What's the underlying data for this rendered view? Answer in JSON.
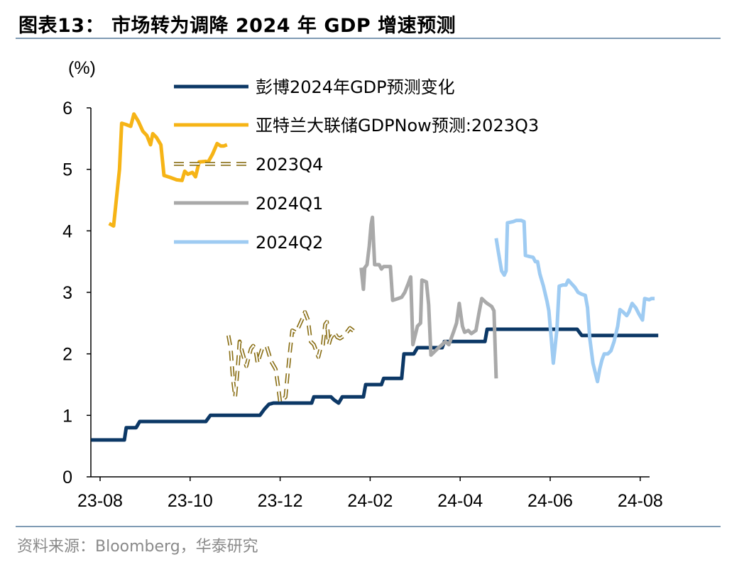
{
  "header": {
    "figure_title": "图表13：  市场转为调降 2024 年 GDP 增速预测"
  },
  "footer": {
    "source": "资料来源：Bloomberg，华泰研究"
  },
  "chart_data": {
    "type": "line",
    "title": "",
    "ylabel": "(%)",
    "xlabel": "",
    "ylim": [
      0,
      6
    ],
    "yticks": [
      0,
      1,
      2,
      3,
      4,
      5,
      6
    ],
    "xlim": [
      0,
      12.5
    ],
    "xticks": [
      {
        "label": "23-08",
        "x": 0
      },
      {
        "label": "23-10",
        "x": 2
      },
      {
        "label": "23-12",
        "x": 4
      },
      {
        "label": "24-02",
        "x": 6
      },
      {
        "label": "24-04",
        "x": 8
      },
      {
        "label": "24-06",
        "x": 10
      },
      {
        "label": "24-08",
        "x": 12
      }
    ],
    "grid": false,
    "legend_position": "top-center",
    "series": [
      {
        "name": "彭博2024年GDP预测变化",
        "color": "#0c3866",
        "dash": "solid",
        "points": [
          [
            -0.2,
            0.6
          ],
          [
            0.54,
            0.6
          ],
          [
            0.58,
            0.8
          ],
          [
            0.8,
            0.8
          ],
          [
            0.88,
            0.9
          ],
          [
            2.35,
            0.9
          ],
          [
            2.45,
            1.0
          ],
          [
            3.55,
            1.0
          ],
          [
            3.65,
            1.1
          ],
          [
            3.75,
            1.18
          ],
          [
            3.85,
            1.2
          ],
          [
            4.7,
            1.2
          ],
          [
            4.75,
            1.3
          ],
          [
            5.13,
            1.3
          ],
          [
            5.2,
            1.25
          ],
          [
            5.3,
            1.2
          ],
          [
            5.38,
            1.3
          ],
          [
            5.85,
            1.3
          ],
          [
            5.9,
            1.5
          ],
          [
            6.25,
            1.5
          ],
          [
            6.3,
            1.6
          ],
          [
            6.7,
            1.6
          ],
          [
            6.75,
            2.0
          ],
          [
            6.97,
            2.0
          ],
          [
            7.05,
            2.1
          ],
          [
            7.6,
            2.1
          ],
          [
            7.65,
            2.2
          ],
          [
            8.55,
            2.2
          ],
          [
            8.6,
            2.4
          ],
          [
            10.6,
            2.4
          ],
          [
            10.7,
            2.3
          ],
          [
            12.4,
            2.3
          ]
        ]
      },
      {
        "name": "亚特兰大联储GDPNow预测:2023Q3",
        "color": "#f6b416",
        "dash": "solid",
        "points": [
          [
            0.2,
            4.12
          ],
          [
            0.3,
            4.08
          ],
          [
            0.43,
            5.0
          ],
          [
            0.48,
            5.75
          ],
          [
            0.57,
            5.73
          ],
          [
            0.68,
            5.7
          ],
          [
            0.75,
            5.9
          ],
          [
            0.85,
            5.78
          ],
          [
            0.95,
            5.62
          ],
          [
            1.04,
            5.55
          ],
          [
            1.12,
            5.4
          ],
          [
            1.17,
            5.58
          ],
          [
            1.25,
            5.52
          ],
          [
            1.35,
            5.4
          ],
          [
            1.42,
            4.9
          ],
          [
            1.55,
            4.87
          ],
          [
            1.7,
            4.83
          ],
          [
            1.82,
            4.82
          ],
          [
            1.88,
            4.97
          ],
          [
            1.95,
            4.92
          ],
          [
            2.05,
            4.95
          ],
          [
            2.12,
            4.88
          ],
          [
            2.2,
            5.12
          ],
          [
            2.35,
            5.13
          ],
          [
            2.4,
            5.12
          ],
          [
            2.5,
            5.25
          ],
          [
            2.6,
            5.42
          ],
          [
            2.68,
            5.38
          ],
          [
            2.75,
            5.38
          ],
          [
            2.82,
            5.4
          ]
        ]
      },
      {
        "name": "2023Q4",
        "color": "#8a6f16",
        "dash": "dashed",
        "points": [
          [
            2.85,
            2.3
          ],
          [
            2.9,
            2.1
          ],
          [
            2.95,
            1.6
          ],
          [
            3.0,
            1.3
          ],
          [
            3.05,
            1.7
          ],
          [
            3.1,
            2.2
          ],
          [
            3.15,
            2.05
          ],
          [
            3.25,
            1.8
          ],
          [
            3.35,
            2.08
          ],
          [
            3.4,
            2.13
          ],
          [
            3.45,
            2.07
          ],
          [
            3.5,
            1.85
          ],
          [
            3.55,
            1.97
          ],
          [
            3.6,
            2.08
          ],
          [
            3.7,
            2.12
          ],
          [
            3.75,
            2.0
          ],
          [
            3.8,
            1.88
          ],
          [
            3.9,
            1.75
          ],
          [
            3.95,
            1.5
          ],
          [
            4.0,
            1.22
          ],
          [
            4.05,
            1.25
          ],
          [
            4.12,
            1.3
          ],
          [
            4.17,
            1.7
          ],
          [
            4.22,
            2.05
          ],
          [
            4.27,
            2.38
          ],
          [
            4.35,
            2.35
          ],
          [
            4.4,
            2.42
          ],
          [
            4.5,
            2.58
          ],
          [
            4.55,
            2.68
          ],
          [
            4.62,
            2.55
          ],
          [
            4.68,
            2.2
          ],
          [
            4.75,
            2.15
          ],
          [
            4.8,
            2.05
          ],
          [
            4.85,
            1.95
          ],
          [
            4.9,
            2.1
          ],
          [
            4.95,
            2.15
          ],
          [
            5.0,
            2.48
          ],
          [
            5.04,
            2.52
          ],
          [
            5.08,
            2.15
          ],
          [
            5.12,
            2.25
          ],
          [
            5.2,
            2.35
          ],
          [
            5.27,
            2.27
          ],
          [
            5.33,
            2.25
          ],
          [
            5.43,
            2.3
          ],
          [
            5.48,
            2.35
          ],
          [
            5.55,
            2.42
          ],
          [
            5.62,
            2.38
          ],
          [
            5.67,
            2.35
          ]
        ]
      },
      {
        "name": "2024Q1",
        "color": "#a9a9a9",
        "dash": "solid",
        "points": [
          [
            5.8,
            3.4
          ],
          [
            5.85,
            3.05
          ],
          [
            5.88,
            3.4
          ],
          [
            5.93,
            3.45
          ],
          [
            5.98,
            3.75
          ],
          [
            6.02,
            4.1
          ],
          [
            6.05,
            4.22
          ],
          [
            6.1,
            3.45
          ],
          [
            6.2,
            3.45
          ],
          [
            6.25,
            3.38
          ],
          [
            6.3,
            3.42
          ],
          [
            6.45,
            3.42
          ],
          [
            6.5,
            2.87
          ],
          [
            6.62,
            2.9
          ],
          [
            6.7,
            2.92
          ],
          [
            6.77,
            3.0
          ],
          [
            6.85,
            3.15
          ],
          [
            6.9,
            3.25
          ],
          [
            6.95,
            2.15
          ],
          [
            7.05,
            2.45
          ],
          [
            7.12,
            2.5
          ],
          [
            7.15,
            3.2
          ],
          [
            7.25,
            3.17
          ],
          [
            7.3,
            2.8
          ],
          [
            7.35,
            1.98
          ],
          [
            7.45,
            2.05
          ],
          [
            7.52,
            2.1
          ],
          [
            7.6,
            2.15
          ],
          [
            7.67,
            2.2
          ],
          [
            7.75,
            2.15
          ],
          [
            7.85,
            2.35
          ],
          [
            7.92,
            2.5
          ],
          [
            7.98,
            2.82
          ],
          [
            8.05,
            2.45
          ],
          [
            8.1,
            2.35
          ],
          [
            8.18,
            2.38
          ],
          [
            8.25,
            2.33
          ],
          [
            8.35,
            2.38
          ],
          [
            8.42,
            2.67
          ],
          [
            8.48,
            2.9
          ],
          [
            8.58,
            2.83
          ],
          [
            8.7,
            2.77
          ],
          [
            8.75,
            2.7
          ],
          [
            8.8,
            1.6
          ]
        ]
      },
      {
        "name": "2024Q2",
        "color": "#9ecbf2",
        "dash": "solid",
        "points": [
          [
            8.8,
            3.88
          ],
          [
            8.85,
            3.65
          ],
          [
            8.92,
            3.35
          ],
          [
            8.98,
            3.28
          ],
          [
            9.02,
            3.35
          ],
          [
            9.05,
            4.13
          ],
          [
            9.18,
            4.15
          ],
          [
            9.25,
            4.17
          ],
          [
            9.35,
            4.17
          ],
          [
            9.42,
            4.15
          ],
          [
            9.45,
            3.6
          ],
          [
            9.55,
            3.58
          ],
          [
            9.62,
            3.57
          ],
          [
            9.67,
            3.5
          ],
          [
            9.72,
            3.5
          ],
          [
            9.77,
            3.3
          ],
          [
            9.85,
            3.1
          ],
          [
            9.93,
            2.85
          ],
          [
            9.97,
            2.7
          ],
          [
            10.02,
            2.28
          ],
          [
            10.07,
            1.85
          ],
          [
            10.1,
            2.05
          ],
          [
            10.15,
            2.4
          ],
          [
            10.2,
            3.1
          ],
          [
            10.28,
            3.12
          ],
          [
            10.35,
            3.12
          ],
          [
            10.4,
            3.2
          ],
          [
            10.5,
            3.12
          ],
          [
            10.55,
            3.08
          ],
          [
            10.62,
            3.0
          ],
          [
            10.7,
            2.97
          ],
          [
            10.78,
            2.95
          ],
          [
            10.83,
            2.75
          ],
          [
            10.88,
            2.25
          ],
          [
            10.95,
            1.85
          ],
          [
            11.0,
            1.7
          ],
          [
            11.05,
            1.55
          ],
          [
            11.1,
            1.75
          ],
          [
            11.15,
            1.9
          ],
          [
            11.2,
            2.0
          ],
          [
            11.28,
            2.0
          ],
          [
            11.35,
            2.05
          ],
          [
            11.42,
            2.2
          ],
          [
            11.5,
            2.45
          ],
          [
            11.55,
            2.72
          ],
          [
            11.62,
            2.68
          ],
          [
            11.7,
            2.62
          ],
          [
            11.75,
            2.68
          ],
          [
            11.82,
            2.82
          ],
          [
            11.9,
            2.75
          ],
          [
            11.97,
            2.65
          ],
          [
            12.05,
            2.55
          ],
          [
            12.1,
            2.9
          ],
          [
            12.2,
            2.88
          ],
          [
            12.25,
            2.9
          ],
          [
            12.32,
            2.9
          ]
        ]
      }
    ]
  }
}
